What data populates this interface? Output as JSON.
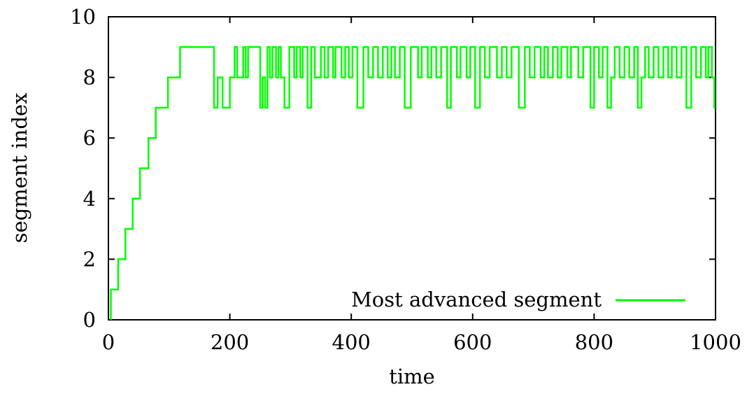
{
  "chart_data": {
    "type": "line",
    "title": "",
    "xlabel": "time",
    "ylabel": "segment index",
    "xlim": [
      0,
      1000
    ],
    "ylim": [
      0,
      10
    ],
    "xticks": [
      "0",
      "200",
      "400",
      "600",
      "800",
      "1000"
    ],
    "yticks": [
      "0",
      "2",
      "4",
      "6",
      "8",
      "10"
    ],
    "grid": false,
    "legend_position": "bottom-right",
    "series": [
      {
        "name": "Most advanced segment",
        "color": "#00ff00",
        "step": true,
        "points": [
          [
            4,
            0
          ],
          [
            4,
            1
          ],
          [
            16,
            1
          ],
          [
            16,
            2
          ],
          [
            28,
            2
          ],
          [
            28,
            3
          ],
          [
            40,
            3
          ],
          [
            40,
            4
          ],
          [
            52,
            4
          ],
          [
            52,
            5
          ],
          [
            66,
            5
          ],
          [
            66,
            6
          ],
          [
            78,
            6
          ],
          [
            78,
            7
          ],
          [
            98,
            7
          ],
          [
            98,
            8
          ],
          [
            118,
            8
          ],
          [
            118,
            9
          ],
          [
            174,
            9
          ],
          [
            174,
            7
          ],
          [
            180,
            7
          ],
          [
            180,
            8
          ],
          [
            188,
            8
          ],
          [
            188,
            7
          ],
          [
            200,
            7
          ],
          [
            200,
            8
          ],
          [
            208,
            8
          ],
          [
            208,
            9
          ],
          [
            212,
            9
          ],
          [
            212,
            8
          ],
          [
            222,
            8
          ],
          [
            222,
            9
          ],
          [
            226,
            9
          ],
          [
            226,
            8
          ],
          [
            230,
            8
          ],
          [
            230,
            9
          ],
          [
            250,
            9
          ],
          [
            250,
            7
          ],
          [
            254,
            7
          ],
          [
            254,
            8
          ],
          [
            258,
            8
          ],
          [
            258,
            7
          ],
          [
            262,
            7
          ],
          [
            262,
            9
          ],
          [
            266,
            9
          ],
          [
            266,
            8
          ],
          [
            270,
            8
          ],
          [
            270,
            9
          ],
          [
            276,
            9
          ],
          [
            276,
            8
          ],
          [
            280,
            8
          ],
          [
            280,
            9
          ],
          [
            284,
            9
          ],
          [
            284,
            8
          ],
          [
            290,
            8
          ],
          [
            290,
            7
          ],
          [
            298,
            7
          ],
          [
            298,
            9
          ],
          [
            306,
            9
          ],
          [
            306,
            8
          ],
          [
            310,
            8
          ],
          [
            310,
            9
          ],
          [
            316,
            9
          ],
          [
            316,
            8
          ],
          [
            320,
            8
          ],
          [
            320,
            9
          ],
          [
            328,
            9
          ],
          [
            328,
            7
          ],
          [
            334,
            7
          ],
          [
            334,
            9
          ],
          [
            340,
            9
          ],
          [
            340,
            8
          ],
          [
            350,
            8
          ],
          [
            350,
            9
          ],
          [
            356,
            9
          ],
          [
            356,
            8
          ],
          [
            362,
            8
          ],
          [
            362,
            9
          ],
          [
            370,
            9
          ],
          [
            370,
            8
          ],
          [
            374,
            8
          ],
          [
            374,
            9
          ],
          [
            384,
            9
          ],
          [
            384,
            8
          ],
          [
            390,
            8
          ],
          [
            390,
            9
          ],
          [
            396,
            9
          ],
          [
            396,
            8
          ],
          [
            402,
            8
          ],
          [
            402,
            9
          ],
          [
            410,
            9
          ],
          [
            410,
            7
          ],
          [
            420,
            7
          ],
          [
            420,
            9
          ],
          [
            428,
            9
          ],
          [
            428,
            8
          ],
          [
            436,
            8
          ],
          [
            436,
            9
          ],
          [
            444,
            9
          ],
          [
            444,
            8
          ],
          [
            452,
            8
          ],
          [
            452,
            9
          ],
          [
            460,
            9
          ],
          [
            460,
            8
          ],
          [
            466,
            8
          ],
          [
            466,
            9
          ],
          [
            472,
            9
          ],
          [
            472,
            8
          ],
          [
            480,
            8
          ],
          [
            480,
            9
          ],
          [
            488,
            9
          ],
          [
            488,
            7
          ],
          [
            498,
            7
          ],
          [
            498,
            9
          ],
          [
            510,
            9
          ],
          [
            510,
            8
          ],
          [
            516,
            8
          ],
          [
            516,
            9
          ],
          [
            526,
            9
          ],
          [
            526,
            8
          ],
          [
            532,
            8
          ],
          [
            532,
            9
          ],
          [
            540,
            9
          ],
          [
            540,
            8
          ],
          [
            548,
            8
          ],
          [
            548,
            9
          ],
          [
            558,
            9
          ],
          [
            558,
            7
          ],
          [
            564,
            7
          ],
          [
            564,
            9
          ],
          [
            574,
            9
          ],
          [
            574,
            8
          ],
          [
            580,
            8
          ],
          [
            580,
            9
          ],
          [
            590,
            9
          ],
          [
            590,
            8
          ],
          [
            596,
            8
          ],
          [
            596,
            9
          ],
          [
            604,
            9
          ],
          [
            604,
            7
          ],
          [
            612,
            7
          ],
          [
            612,
            9
          ],
          [
            620,
            9
          ],
          [
            620,
            8
          ],
          [
            628,
            8
          ],
          [
            628,
            9
          ],
          [
            640,
            9
          ],
          [
            640,
            8
          ],
          [
            648,
            8
          ],
          [
            648,
            9
          ],
          [
            656,
            9
          ],
          [
            656,
            8
          ],
          [
            664,
            8
          ],
          [
            664,
            9
          ],
          [
            676,
            9
          ],
          [
            676,
            7
          ],
          [
            686,
            7
          ],
          [
            686,
            9
          ],
          [
            694,
            9
          ],
          [
            694,
            8
          ],
          [
            702,
            8
          ],
          [
            702,
            9
          ],
          [
            712,
            9
          ],
          [
            712,
            8
          ],
          [
            718,
            8
          ],
          [
            718,
            9
          ],
          [
            724,
            9
          ],
          [
            724,
            8
          ],
          [
            732,
            8
          ],
          [
            732,
            9
          ],
          [
            740,
            9
          ],
          [
            740,
            8
          ],
          [
            746,
            8
          ],
          [
            746,
            9
          ],
          [
            756,
            9
          ],
          [
            756,
            8
          ],
          [
            762,
            8
          ],
          [
            762,
            9
          ],
          [
            774,
            9
          ],
          [
            774,
            8
          ],
          [
            782,
            8
          ],
          [
            782,
            9
          ],
          [
            794,
            9
          ],
          [
            794,
            7
          ],
          [
            800,
            7
          ],
          [
            800,
            9
          ],
          [
            808,
            9
          ],
          [
            808,
            8
          ],
          [
            814,
            8
          ],
          [
            814,
            9
          ],
          [
            822,
            9
          ],
          [
            822,
            7
          ],
          [
            828,
            7
          ],
          [
            828,
            8
          ],
          [
            834,
            8
          ],
          [
            834,
            9
          ],
          [
            842,
            9
          ],
          [
            842,
            8
          ],
          [
            850,
            8
          ],
          [
            850,
            9
          ],
          [
            858,
            9
          ],
          [
            858,
            8
          ],
          [
            866,
            8
          ],
          [
            866,
            9
          ],
          [
            872,
            9
          ],
          [
            872,
            7
          ],
          [
            878,
            7
          ],
          [
            878,
            8
          ],
          [
            884,
            8
          ],
          [
            884,
            9
          ],
          [
            890,
            9
          ],
          [
            890,
            8
          ],
          [
            898,
            8
          ],
          [
            898,
            9
          ],
          [
            906,
            9
          ],
          [
            906,
            8
          ],
          [
            914,
            8
          ],
          [
            914,
            9
          ],
          [
            922,
            9
          ],
          [
            922,
            8
          ],
          [
            928,
            8
          ],
          [
            928,
            9
          ],
          [
            936,
            9
          ],
          [
            936,
            8
          ],
          [
            944,
            8
          ],
          [
            944,
            9
          ],
          [
            952,
            9
          ],
          [
            952,
            7
          ],
          [
            960,
            7
          ],
          [
            960,
            9
          ],
          [
            968,
            9
          ],
          [
            968,
            8
          ],
          [
            976,
            8
          ],
          [
            976,
            9
          ],
          [
            984,
            9
          ],
          [
            984,
            8
          ],
          [
            988,
            8
          ],
          [
            988,
            9
          ],
          [
            994,
            9
          ],
          [
            994,
            8
          ],
          [
            998,
            8
          ],
          [
            998,
            7
          ],
          [
            1000,
            7
          ]
        ]
      }
    ]
  }
}
